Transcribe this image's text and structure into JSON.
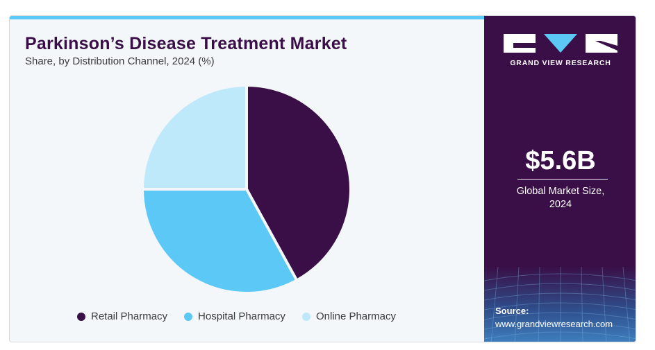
{
  "header": {
    "title": "Parkinson’s Disease Treatment Market",
    "subtitle": "Share, by Distribution Channel, 2024 (%)"
  },
  "chart_data": {
    "type": "pie",
    "categories": [
      "Retail Pharmacy",
      "Hospital Pharmacy",
      "Online Pharmacy"
    ],
    "values": [
      42,
      33,
      25
    ],
    "colors": [
      "#3a0f47",
      "#5bc8f5",
      "#bde9fa"
    ],
    "legend": "bottom"
  },
  "sidebar": {
    "logo_text": "GRAND VIEW RESEARCH",
    "market_value": "$5.6B",
    "market_caption_line1": "Global Market Size,",
    "market_caption_line2": "2024",
    "source_label": "Source:",
    "source_url": "www.grandviewresearch.com"
  }
}
